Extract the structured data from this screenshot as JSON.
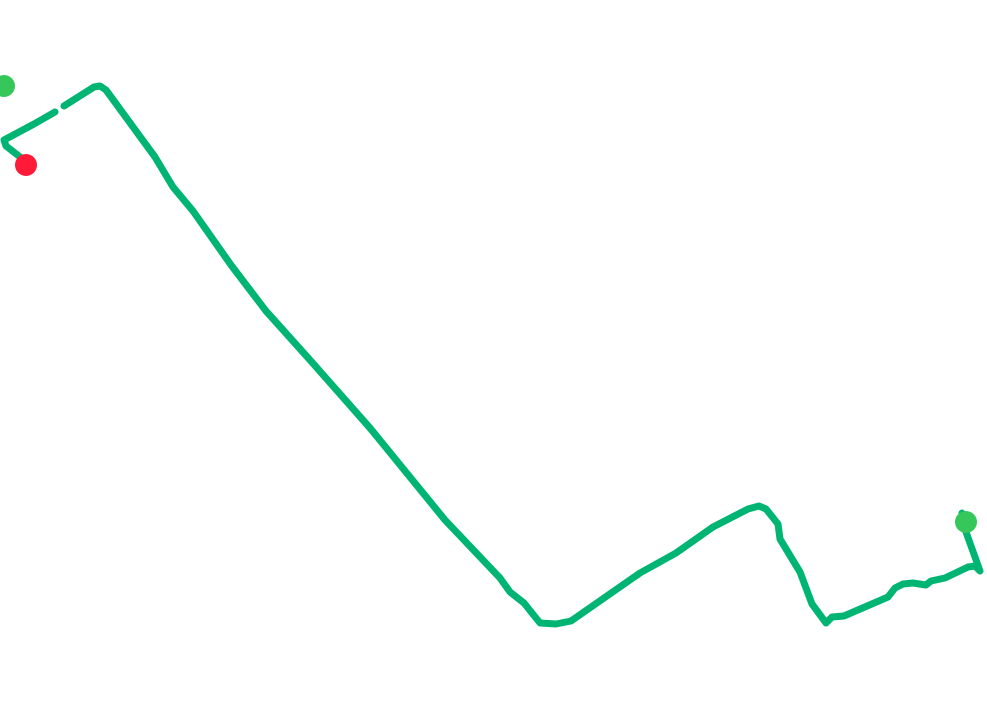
{
  "map": {
    "background_color": "#ffffff",
    "route_color": "#00b574",
    "markers": [
      {
        "type": "start-marker",
        "color": "#35c759"
      },
      {
        "type": "end-marker",
        "color": "#ff1a3a"
      },
      {
        "type": "waypoint-marker",
        "color": "#35c759"
      }
    ]
  }
}
